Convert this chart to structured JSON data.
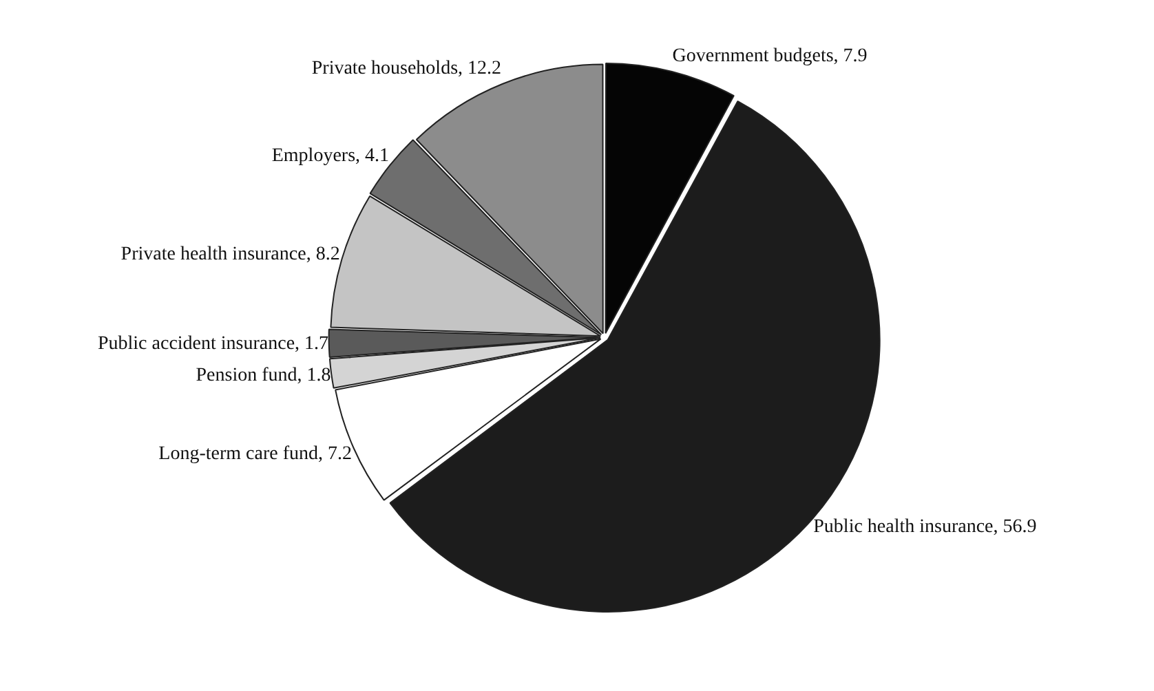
{
  "chart_data": {
    "type": "pie",
    "categories": [
      "Government budgets",
      "Public health insurance",
      "Long-term care fund",
      "Pension fund",
      "Public accident insurance",
      "Private health insurance",
      "Employers",
      "Private households"
    ],
    "values": [
      7.9,
      56.9,
      7.2,
      1.8,
      1.7,
      8.2,
      4.1,
      12.2
    ],
    "colors": [
      "#050505",
      "#1c1c1c",
      "#ffffff",
      "#d4d4d4",
      "#5a5a5a",
      "#c4c4c4",
      "#6e6e6e",
      "#8c8c8c"
    ],
    "value_labels": [
      ", 7.9",
      ", 56.9",
      ", 7.2",
      ", 1.8",
      ", 1.7",
      ", 8.2",
      ", 4.1",
      ", 12.2"
    ],
    "legend": false
  }
}
